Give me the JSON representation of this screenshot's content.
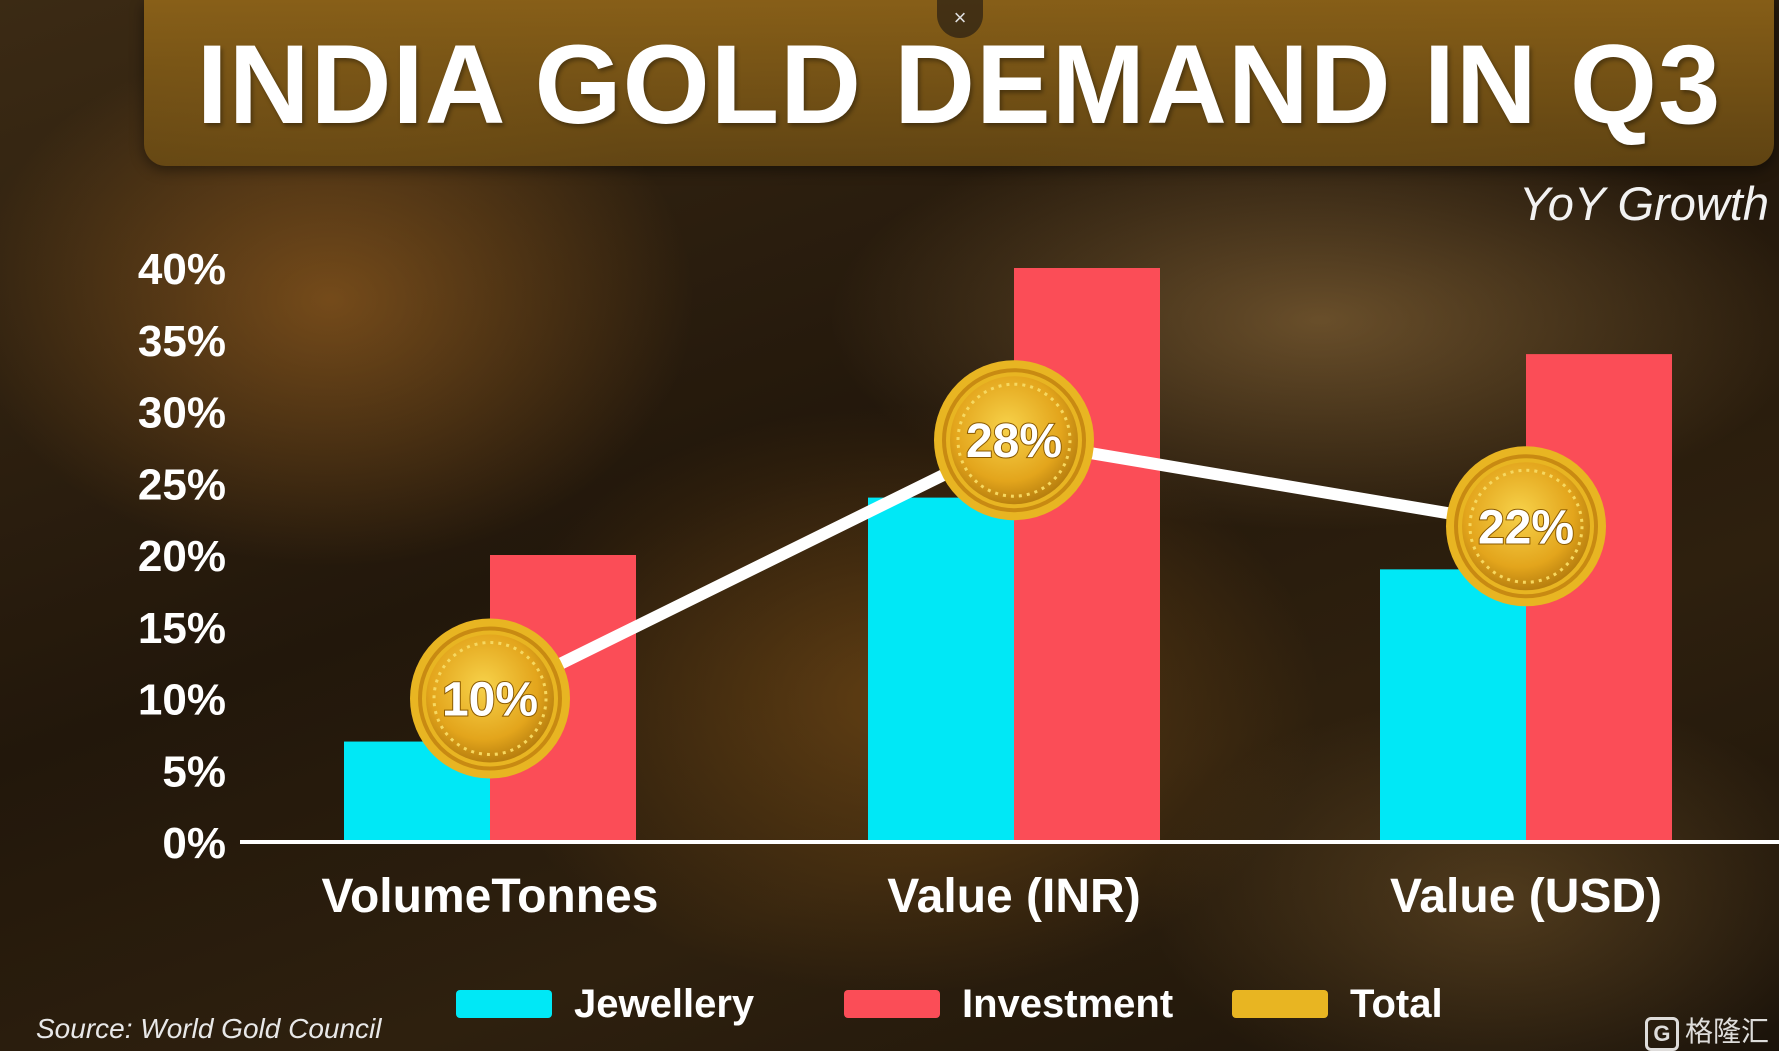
{
  "header": {
    "title": "INDIA GOLD DEMAND IN Q3",
    "close_icon_glyph": "×"
  },
  "subtitle": "YoY Growth",
  "source": "Source: World Gold Council",
  "watermark": "格隆汇",
  "colors": {
    "jewellery": "#00E8F6",
    "investment": "#FB4D57",
    "total": "#E8B522",
    "line": "#FFFFFF"
  },
  "legend": [
    {
      "label": "Jewellery",
      "color": "#00E8F6"
    },
    {
      "label": "Investment",
      "color": "#FB4D57"
    },
    {
      "label": "Total",
      "color": "#E8B522"
    }
  ],
  "chart_data": {
    "type": "bar",
    "title": "INDIA GOLD DEMAND IN Q3",
    "subtitle": "YoY Growth",
    "categories": [
      "VolumeTonnes",
      "Value (INR)",
      "Value (USD)"
    ],
    "series": [
      {
        "name": "Jewellery",
        "type": "bar",
        "values": [
          7,
          24,
          19
        ]
      },
      {
        "name": "Investment",
        "type": "bar",
        "values": [
          20,
          40,
          34
        ]
      },
      {
        "name": "Total",
        "type": "line",
        "values": [
          10,
          28,
          22
        ],
        "labels": [
          "10%",
          "28%",
          "22%"
        ]
      }
    ],
    "ylim": [
      0,
      40
    ],
    "yticks": [
      "0%",
      "5%",
      "10%",
      "15%",
      "20%",
      "25%",
      "30%",
      "35%",
      "40%"
    ],
    "grid": false,
    "legend_position": "bottom"
  }
}
